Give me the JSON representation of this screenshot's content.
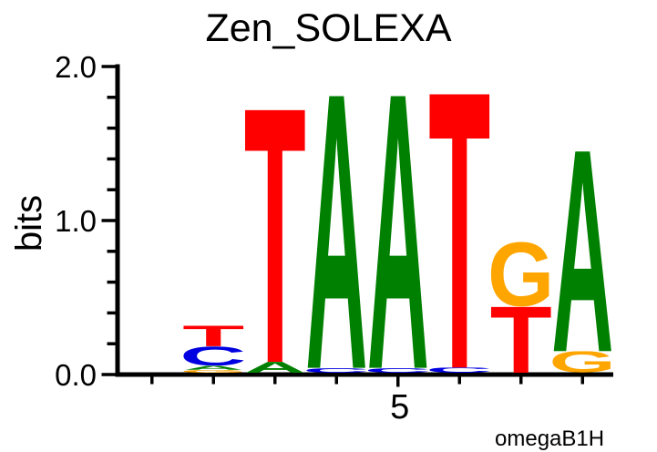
{
  "chart_data": {
    "type": "sequence_logo",
    "title": "Zen_SOLEXA",
    "ylabel": "bits",
    "watermark": "omegaB1H",
    "ylim": [
      0.0,
      2.0
    ],
    "yticks": [
      {
        "value": 0.0,
        "label": "0.0"
      },
      {
        "value": 1.0,
        "label": "1.0"
      },
      {
        "value": 2.0,
        "label": "2.0"
      }
    ],
    "minor_yticks": [
      0.2,
      0.4,
      0.6,
      0.8,
      1.2,
      1.4,
      1.6,
      1.8
    ],
    "xticks": [
      {
        "pos": 1,
        "label": ""
      },
      {
        "pos": 2,
        "label": ""
      },
      {
        "pos": 3,
        "label": ""
      },
      {
        "pos": 4,
        "label": ""
      },
      {
        "pos": 5,
        "label": "5"
      },
      {
        "pos": 6,
        "label": ""
      },
      {
        "pos": 7,
        "label": ""
      },
      {
        "pos": 8,
        "label": ""
      }
    ],
    "alphabet_colors": {
      "A": "#008000",
      "C": "#0000e0",
      "G": "#ffa500",
      "T": "#ff0000"
    },
    "stack_order": "top_to_bottom",
    "positions": [
      {
        "index": 1,
        "stack": []
      },
      {
        "index": 2,
        "stack": [
          {
            "base": "T",
            "bits": 0.134
          },
          {
            "base": "C",
            "bits": 0.126
          },
          {
            "base": "A",
            "bits": 0.027
          },
          {
            "base": "G",
            "bits": 0.019
          }
        ]
      },
      {
        "index": 3,
        "stack": [
          {
            "base": "T",
            "bits": 1.64
          },
          {
            "base": "A",
            "bits": 0.07
          }
        ]
      },
      {
        "index": 4,
        "stack": [
          {
            "base": "A",
            "bits": 1.77
          },
          {
            "base": "C",
            "bits": 0.031
          }
        ]
      },
      {
        "index": 5,
        "stack": [
          {
            "base": "A",
            "bits": 1.77
          },
          {
            "base": "C",
            "bits": 0.031
          }
        ]
      },
      {
        "index": 6,
        "stack": [
          {
            "base": "T",
            "bits": 1.78
          },
          {
            "base": "C",
            "bits": 0.033
          }
        ]
      },
      {
        "index": 7,
        "stack": [
          {
            "base": "G",
            "bits": 0.42
          },
          {
            "base": "T",
            "bits": 0.43
          }
        ]
      },
      {
        "index": 8,
        "stack": [
          {
            "base": "A",
            "bits": 1.3
          },
          {
            "base": "G",
            "bits": 0.14
          }
        ]
      }
    ]
  }
}
